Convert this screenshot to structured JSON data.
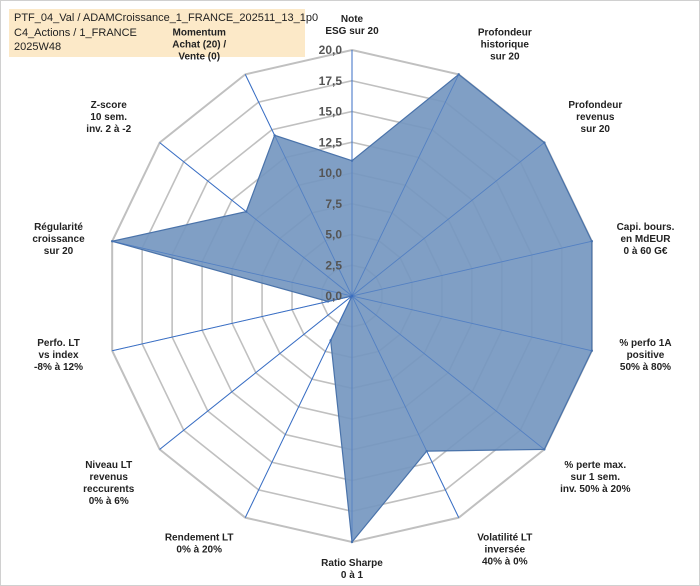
{
  "header": {
    "line1": "PTF_04_Val / ADAMCroissance_1_FRANCE_202511_13_1p0",
    "line2": "C4_Actions / 1_FRANCE",
    "line3": "2025W48"
  },
  "chart_data": {
    "type": "radar",
    "title": "PTF_04_Val / ADAMCroissance_1_FRANCE_202511_13_1p0",
    "rlim": [
      0,
      20
    ],
    "ticks": [
      "0,0",
      "2,5",
      "5,0",
      "7,5",
      "10,0",
      "12,5",
      "15,0",
      "17,5",
      "20,0"
    ],
    "tick_values": [
      0,
      2.5,
      5,
      7.5,
      10,
      12.5,
      15,
      17.5,
      20
    ],
    "grid": true,
    "axes": [
      {
        "label": [
          "Note",
          "ESG sur 20"
        ],
        "value": 11
      },
      {
        "label": [
          "Profondeur",
          "historique",
          "sur 20"
        ],
        "value": 20
      },
      {
        "label": [
          "Profondeur",
          "revenus",
          "sur 20"
        ],
        "value": 20
      },
      {
        "label": [
          "Capi. bours.",
          "en MdEUR",
          "0 à 60 G€"
        ],
        "value": 20
      },
      {
        "label": [
          "% perfo 1A",
          "positive",
          "50% à 80%"
        ],
        "value": 20
      },
      {
        "label": [
          "% perte max.",
          "sur 1 sem.",
          "inv. 50% à 20%"
        ],
        "value": 20
      },
      {
        "label": [
          "Volatilité LT",
          "inversée",
          "40% à 0%"
        ],
        "value": 14
      },
      {
        "label": [
          "Ratio Sharpe",
          "0 à 1"
        ],
        "value": 20
      },
      {
        "label": [
          "Rendement LT",
          "0% à 20%"
        ],
        "value": 4
      },
      {
        "label": [
          "Niveau LT",
          "revenus",
          "reccurents",
          "0% à 6%"
        ],
        "value": 0
      },
      {
        "label": [
          "Perfo. LT",
          "vs index",
          "-8% à 12%"
        ],
        "value": 2
      },
      {
        "label": [
          "Régularité",
          "croissance",
          "sur 20"
        ],
        "value": 20
      },
      {
        "label": [
          "Z-score",
          "10 sem.",
          "inv. 2 à -2"
        ],
        "value": 11
      },
      {
        "label": [
          "Momentum",
          "Achat (20) /",
          "Vente (0)"
        ],
        "value": 14.5
      }
    ],
    "series": [
      {
        "name": "ADAMCroissance_1_FRANCE_202511_13_1p0",
        "color": "#4a73aa",
        "fill_color": "#7597c0"
      }
    ],
    "gridColor": "#c0c0c0",
    "spokeColor": "#3a6fc4"
  }
}
